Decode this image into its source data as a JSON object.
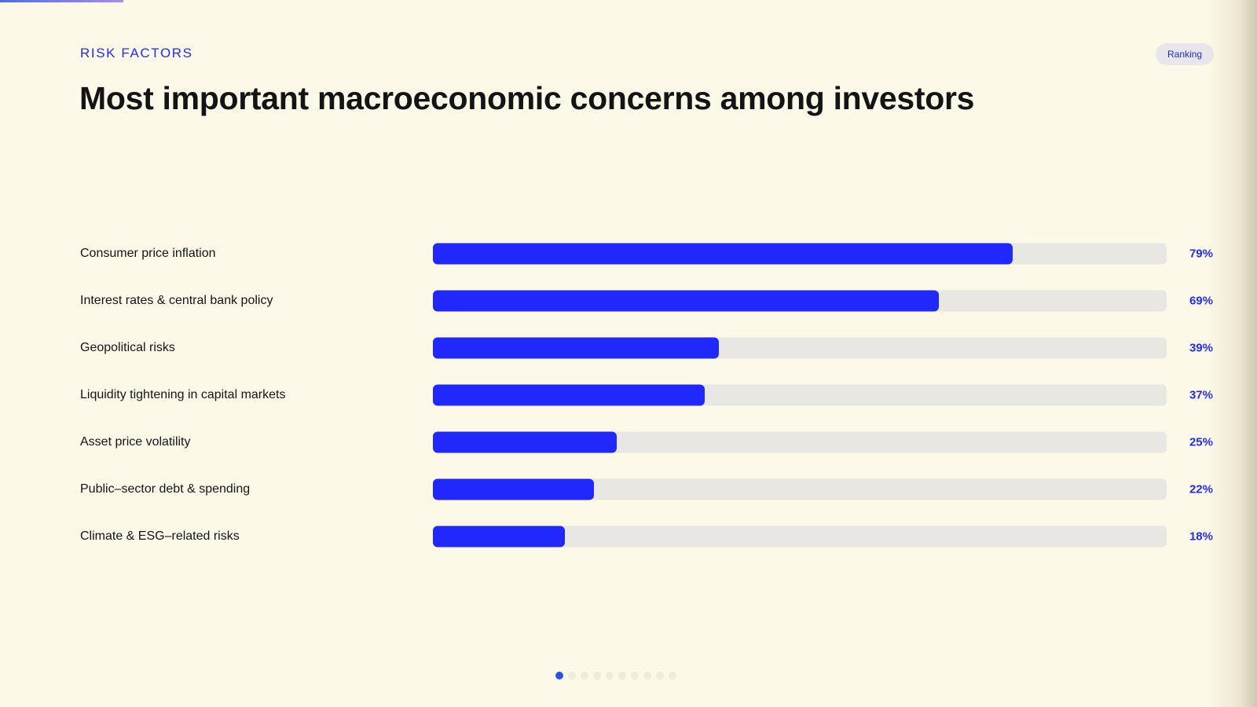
{
  "header": {
    "eyebrow": "RISK FACTORS",
    "badge": "Ranking",
    "title": "Most important macroeconomic concerns among investors"
  },
  "colors": {
    "accent": "#1f2bff",
    "bar_fill": "#2128fb",
    "bar_track": "#e8e7e4",
    "background": "#fdf9e8"
  },
  "chart_data": {
    "type": "bar",
    "orientation": "horizontal",
    "categories": [
      "Consumer price inflation",
      "Interest rates & central bank policy",
      "Geopolitical risks",
      "Liquidity tightening in capital markets",
      "Asset price volatility",
      "Public–sector debt & spending",
      "Climate & ESG–related risks"
    ],
    "values": [
      79,
      69,
      39,
      37,
      25,
      22,
      18
    ],
    "value_labels": [
      "79%",
      "69%",
      "39%",
      "37%",
      "25%",
      "22%",
      "18%"
    ],
    "xlim": [
      0,
      100
    ],
    "grid": false
  },
  "pager": {
    "total": 10,
    "current": 1
  }
}
